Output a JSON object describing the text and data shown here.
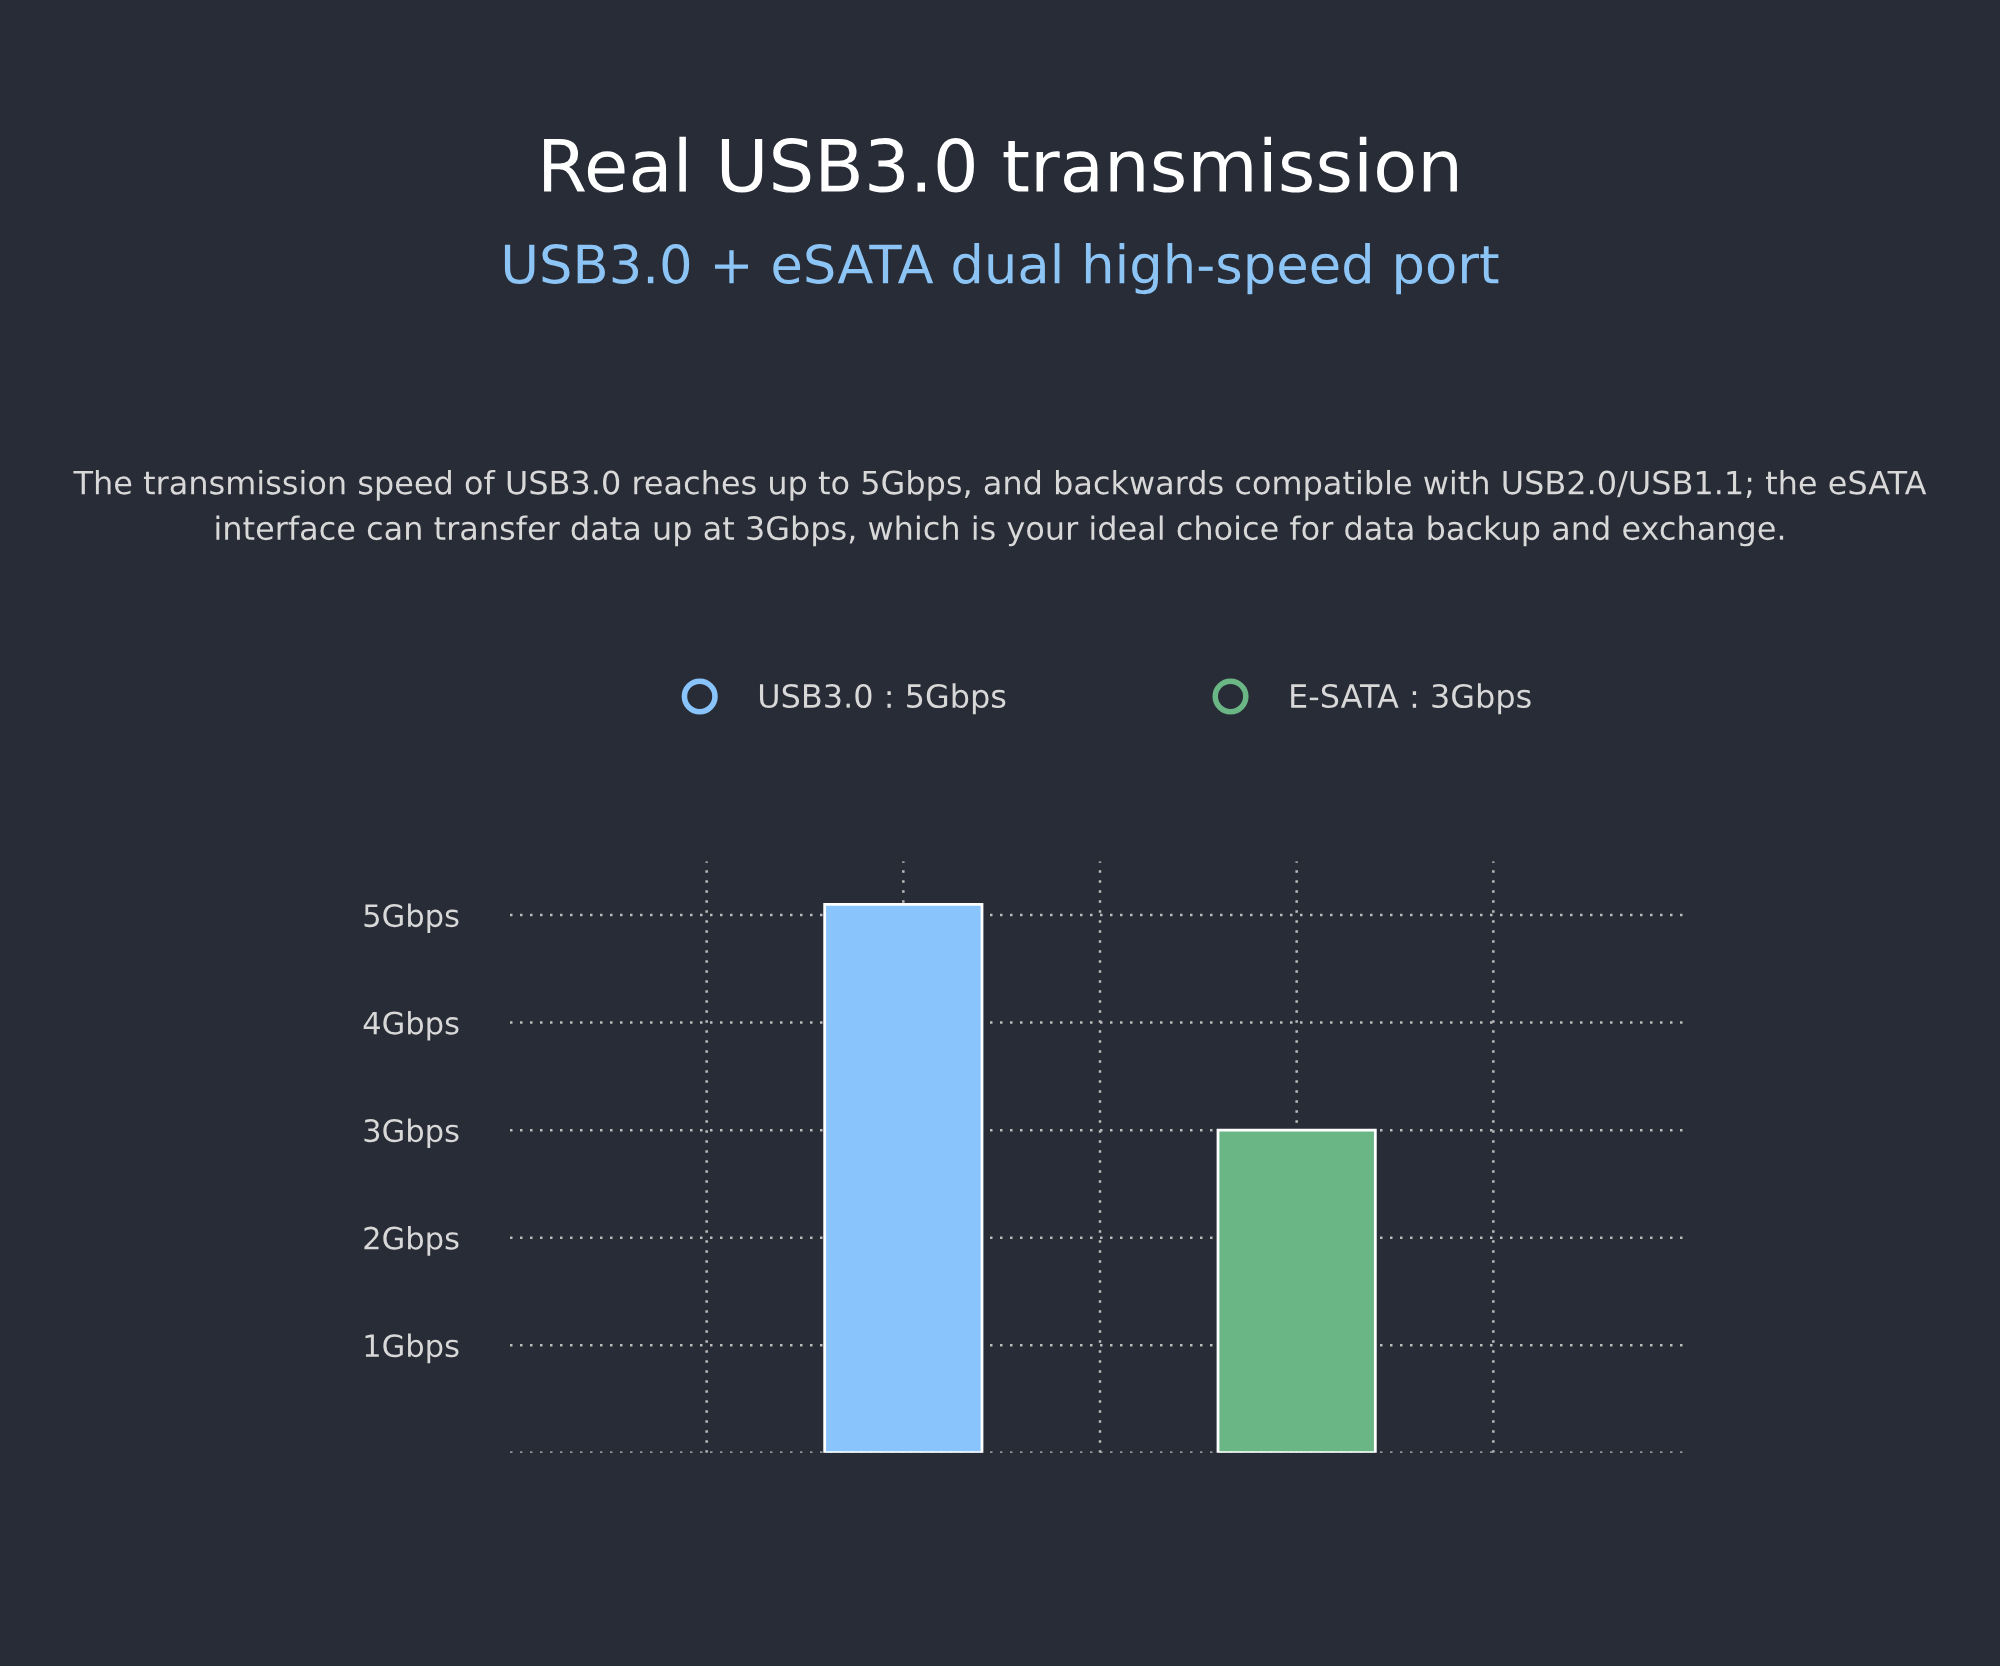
{
  "chart_data": {
    "type": "bar",
    "title": "Real USB3.0 transmission",
    "subtitle": "USB3.0 + eSATA dual high-speed port",
    "annotations": [
      "The transmission speed of USB3.0 reaches up to 5Gbps, and backwards compatible with USB2.0/USB1.1; the eSATA interface can transfer data up at 3Gbps, which is your ideal choice for data backup and exchange."
    ],
    "categories": [
      null,
      null
    ],
    "series": [
      {
        "name": "USB3.0 : 5Gbps",
        "color": "#8ac4fc",
        "values": [
          5.1,
          null
        ]
      },
      {
        "name": "E-SATA : 3Gbps",
        "color": "#6bb685",
        "values": [
          null,
          3
        ]
      }
    ],
    "ylim": [
      0,
      5.5
    ],
    "yticks": [
      {
        "value": 1,
        "label": "1Gbps"
      },
      {
        "value": 2,
        "label": "2Gbps"
      },
      {
        "value": 3,
        "label": "3Gbps"
      },
      {
        "value": 4,
        "label": "4Gbps"
      },
      {
        "value": 5,
        "label": "5Gbps"
      }
    ],
    "grid": true,
    "legend": "top",
    "marker": "circle"
  }
}
